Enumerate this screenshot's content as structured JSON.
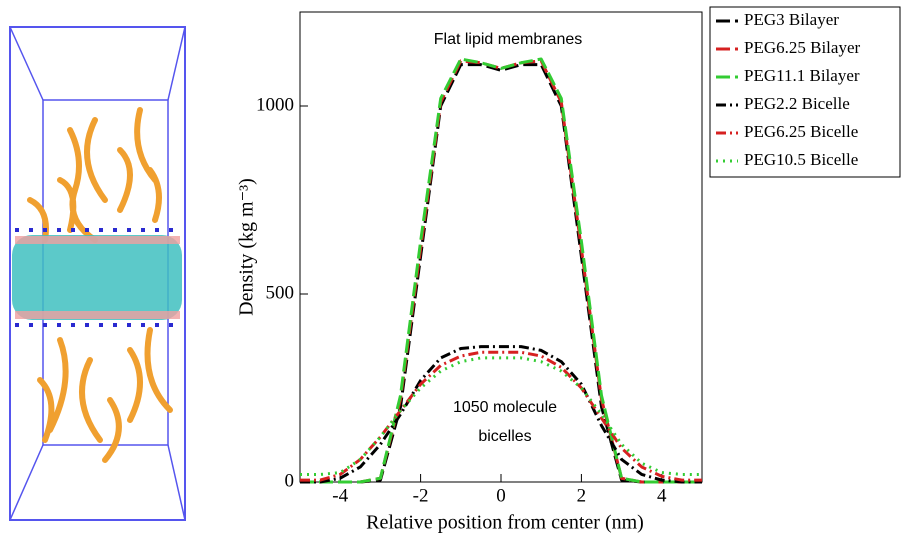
{
  "chart_data": {
    "type": "line",
    "x_label": "Relative position from center (nm)",
    "y_label": "Density (kg m⁻³)",
    "annotations": [
      "Flat lipid membranes",
      "1050 molecule",
      "bicelles"
    ],
    "x": [
      -5,
      -4.5,
      -4,
      -3.5,
      -3,
      -2.5,
      -2,
      -1.5,
      -1,
      -0.5,
      0,
      0.5,
      1,
      1.5,
      2,
      2.5,
      3,
      3.5,
      4,
      4.5,
      5
    ],
    "xlim": [
      -5,
      5
    ],
    "xticks": [
      -4,
      -2,
      0,
      2,
      4
    ],
    "ylim": [
      0,
      1250
    ],
    "yticks": [
      0,
      500,
      1000
    ],
    "legend_position": "outside-right",
    "series": [
      {
        "name": "PEG3 Bilayer",
        "color": "#000000",
        "style": "dashed",
        "values": [
          0,
          0,
          0,
          0,
          5,
          200,
          600,
          1000,
          1110,
          1110,
          1095,
          1110,
          1110,
          1000,
          600,
          200,
          5,
          0,
          0,
          0,
          0
        ]
      },
      {
        "name": "PEG6.25 Bilayer",
        "color": "#d62020",
        "style": "dashed",
        "values": [
          0,
          0,
          0,
          0,
          10,
          220,
          620,
          1010,
          1120,
          1115,
          1100,
          1115,
          1120,
          1010,
          620,
          220,
          10,
          0,
          0,
          0,
          0
        ]
      },
      {
        "name": "PEG11.1 Bilayer",
        "color": "#33cc33",
        "style": "dashed",
        "values": [
          0,
          0,
          0,
          0,
          10,
          230,
          640,
          1020,
          1125,
          1115,
          1100,
          1115,
          1125,
          1020,
          640,
          230,
          10,
          0,
          0,
          0,
          0
        ]
      },
      {
        "name": "PEG2.2 Bicelle",
        "color": "#000000",
        "style": "dashdot",
        "values": [
          0,
          0,
          10,
          40,
          100,
          180,
          270,
          330,
          355,
          360,
          360,
          360,
          350,
          320,
          260,
          150,
          60,
          20,
          5,
          0,
          0
        ]
      },
      {
        "name": "PEG6.25 Bicelle",
        "color": "#d62020",
        "style": "dashdot",
        "values": [
          5,
          5,
          20,
          60,
          120,
          190,
          260,
          310,
          335,
          345,
          345,
          345,
          335,
          305,
          250,
          170,
          90,
          40,
          15,
          5,
          5
        ]
      },
      {
        "name": "PEG10.5 Bicelle",
        "color": "#33cc33",
        "style": "dotted",
        "values": [
          20,
          20,
          25,
          60,
          120,
          190,
          250,
          295,
          320,
          330,
          330,
          330,
          320,
          295,
          250,
          180,
          100,
          50,
          25,
          20,
          20
        ]
      }
    ]
  }
}
